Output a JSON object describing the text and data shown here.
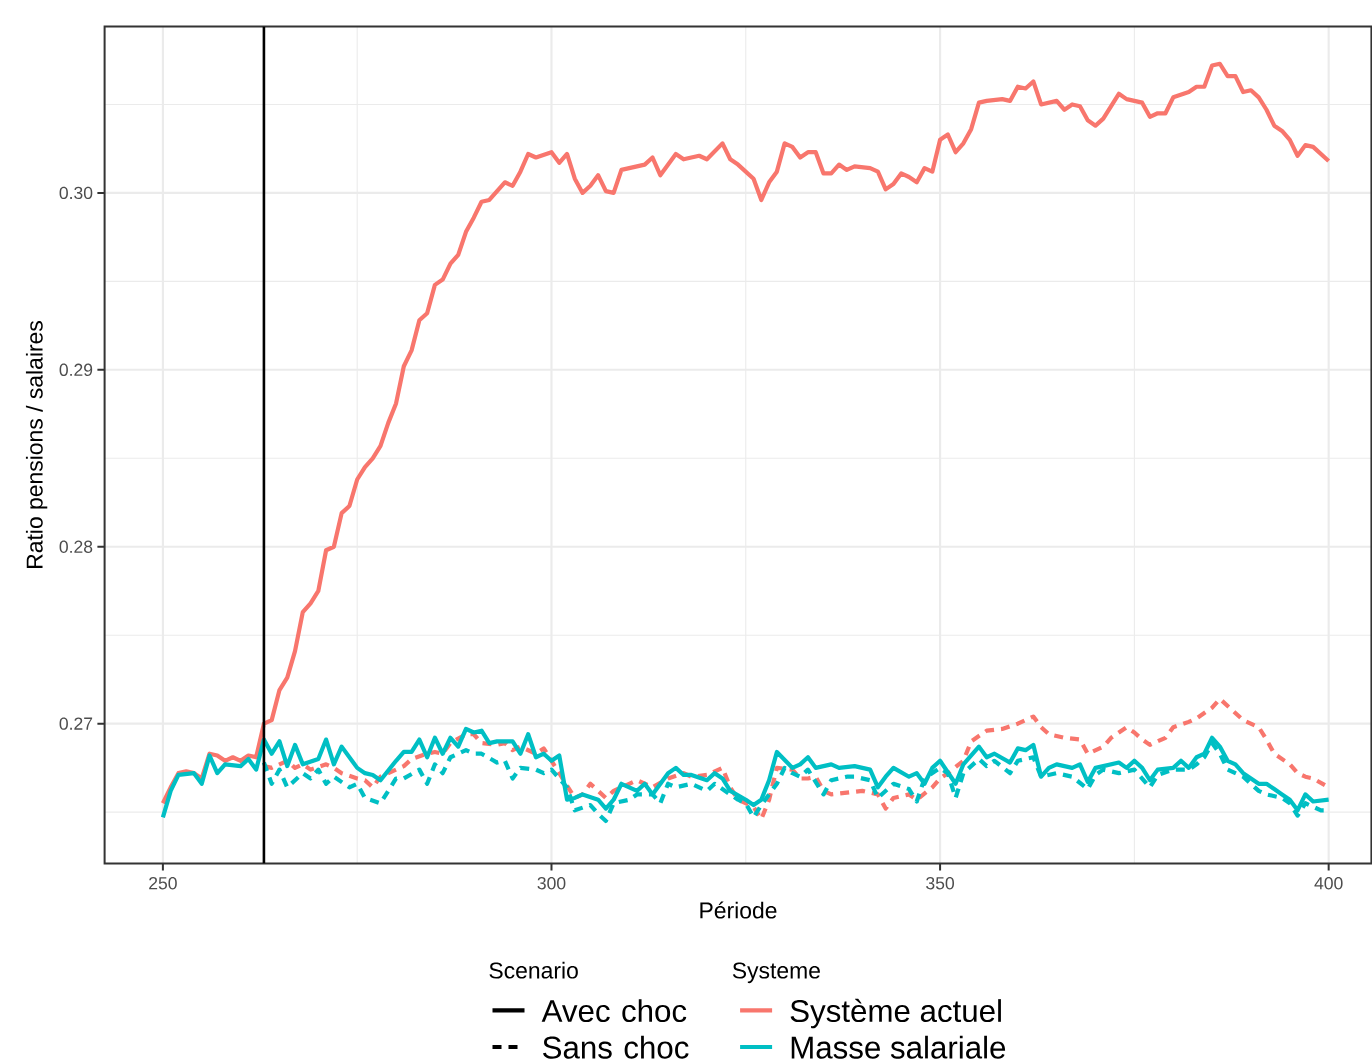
{
  "chart_data": {
    "type": "line",
    "xlabel": "Période",
    "ylabel": "Ratio pensions / salaires",
    "legend_title": [
      "Scenario",
      "Systeme"
    ],
    "xlim": [
      242.5,
      405.5
    ],
    "ylim": [
      0.2621,
      0.3094
    ],
    "xticks": [
      250,
      300,
      350,
      400
    ],
    "yticks": [
      0.27,
      0.28,
      0.29,
      {
        "value": 0.3,
        "label": "0.30"
      }
    ],
    "grid": true,
    "legend": "bottom",
    "ref_lines": [
      {
        "axis": "x",
        "value": 263,
        "color": "#000000"
      }
    ],
    "series": [
      {
        "name": "Système actuel",
        "color": "#f8766d",
        "line_style": "solid",
        "x": [
          250,
          251,
          252,
          253,
          254,
          255,
          256,
          257,
          258,
          259,
          260,
          261,
          262,
          263,
          264,
          265,
          266,
          267,
          268,
          269,
          270,
          271,
          272,
          273,
          274,
          275,
          276,
          277,
          278,
          279,
          280,
          281,
          282,
          283,
          284,
          285,
          286,
          287,
          288,
          289,
          290,
          291,
          292,
          293,
          294,
          295,
          296,
          297,
          298,
          300,
          301,
          302,
          303,
          304,
          305,
          306,
          307,
          308,
          309,
          311,
          312,
          313,
          314,
          316,
          317,
          319,
          320,
          322,
          323,
          324,
          326,
          327,
          328,
          329,
          330,
          331,
          332,
          333,
          334,
          335,
          336,
          337,
          338,
          339,
          341,
          342,
          343,
          344,
          345,
          346,
          347,
          348,
          349,
          350,
          351,
          352,
          353,
          354,
          355,
          356,
          358,
          359,
          360,
          361,
          362,
          363,
          365,
          366,
          367,
          368,
          369,
          370,
          371,
          373,
          374,
          376,
          377,
          378,
          379,
          380,
          382,
          383,
          384,
          385,
          386,
          387,
          388,
          389,
          390,
          391,
          392,
          393,
          394,
          395,
          396,
          397,
          398,
          400
        ],
        "values": [
          0.2655,
          0.2664,
          0.2672,
          0.2673,
          0.2672,
          0.2669,
          0.2683,
          0.2682,
          0.2679,
          0.2681,
          0.2679,
          0.2682,
          0.2681,
          0.27,
          0.2702,
          0.2719,
          0.2726,
          0.2741,
          0.2763,
          0.2768,
          0.2775,
          0.2798,
          0.28,
          0.2819,
          0.2823,
          0.2838,
          0.2845,
          0.285,
          0.2857,
          0.287,
          0.2881,
          0.2902,
          0.2911,
          0.2928,
          0.2932,
          0.2948,
          0.2951,
          0.296,
          0.2965,
          0.2978,
          0.2986,
          0.2995,
          0.2996,
          0.3001,
          0.3006,
          0.3004,
          0.3012,
          0.3022,
          0.302,
          0.3023,
          0.3017,
          0.3022,
          0.3008,
          0.3,
          0.3004,
          0.301,
          0.3001,
          0.3,
          0.3013,
          0.3015,
          0.3016,
          0.302,
          0.301,
          0.3022,
          0.3019,
          0.3021,
          0.3019,
          0.3028,
          0.3019,
          0.3016,
          0.3008,
          0.2996,
          0.3006,
          0.3012,
          0.3028,
          0.3026,
          0.302,
          0.3023,
          0.3023,
          0.3011,
          0.3011,
          0.3016,
          0.3013,
          0.3015,
          0.3014,
          0.3012,
          0.3002,
          0.3005,
          0.3011,
          0.3009,
          0.3006,
          0.3014,
          0.3012,
          0.303,
          0.3033,
          0.3023,
          0.3028,
          0.3036,
          0.3051,
          0.3052,
          0.3053,
          0.3052,
          0.306,
          0.3059,
          0.3063,
          0.305,
          0.3052,
          0.3047,
          0.305,
          0.3049,
          0.3041,
          0.3038,
          0.3042,
          0.3056,
          0.3053,
          0.3051,
          0.3043,
          0.3045,
          0.3045,
          0.3054,
          0.3057,
          0.306,
          0.306,
          0.3072,
          0.3073,
          0.3066,
          0.3066,
          0.3057,
          0.3058,
          0.3054,
          0.3047,
          0.3038,
          0.3035,
          0.303,
          0.3021,
          0.3027,
          0.3026,
          0.3018
        ]
      },
      {
        "color": "#f8766d",
        "line_style": "dashed",
        "x": [
          263,
          264,
          266,
          267,
          268,
          269,
          271,
          272,
          273,
          275,
          276,
          277,
          278,
          280,
          281,
          282,
          284,
          285,
          286,
          287,
          289,
          290,
          291,
          293,
          294,
          295,
          296,
          298,
          299,
          300,
          301,
          303,
          304,
          305,
          307,
          308,
          310,
          311,
          313,
          315,
          317,
          318,
          320,
          322,
          323,
          324,
          326,
          327,
          328,
          329,
          331,
          332,
          333,
          334,
          335,
          336,
          338,
          340,
          342,
          343,
          344,
          346,
          347,
          349,
          350,
          351,
          353,
          354,
          356,
          358,
          360,
          362,
          363,
          364,
          366,
          368,
          369,
          371,
          372,
          374,
          375,
          376,
          377,
          379,
          380,
          382,
          383,
          385,
          386,
          387,
          388,
          389,
          391,
          392,
          393,
          395,
          396,
          397,
          398,
          400
        ],
        "values": [
          0.2676,
          0.2675,
          0.2679,
          0.2675,
          0.2677,
          0.2674,
          0.2677,
          0.2675,
          0.2672,
          0.2669,
          0.2668,
          0.2664,
          0.267,
          0.2674,
          0.2676,
          0.268,
          0.2683,
          0.2684,
          0.2683,
          0.2689,
          0.2694,
          0.2694,
          0.2689,
          0.2688,
          0.2689,
          0.2685,
          0.2687,
          0.2683,
          0.2686,
          0.2679,
          0.2672,
          0.2658,
          0.266,
          0.2666,
          0.2658,
          0.2662,
          0.2666,
          0.2668,
          0.2664,
          0.2669,
          0.2672,
          0.267,
          0.2671,
          0.2675,
          0.2664,
          0.2657,
          0.2653,
          0.2646,
          0.2657,
          0.2675,
          0.2674,
          0.2669,
          0.2669,
          0.267,
          0.2662,
          0.266,
          0.2661,
          0.2662,
          0.266,
          0.2652,
          0.2658,
          0.266,
          0.2657,
          0.2664,
          0.2669,
          0.2672,
          0.2679,
          0.269,
          0.2696,
          0.2697,
          0.27,
          0.2704,
          0.2698,
          0.2694,
          0.2692,
          0.2691,
          0.2683,
          0.2687,
          0.2692,
          0.2698,
          0.2695,
          0.2691,
          0.2688,
          0.2692,
          0.2698,
          0.2701,
          0.2703,
          0.2709,
          0.2714,
          0.271,
          0.2706,
          0.2702,
          0.2698,
          0.2691,
          0.2683,
          0.2677,
          0.2672,
          0.267,
          0.2669,
          0.2664
        ]
      },
      {
        "name": "Masse salariale",
        "color": "#00bfc4",
        "line_style": "solid",
        "x": [
          250,
          251,
          252,
          254,
          255,
          256,
          257,
          258,
          260,
          261,
          262,
          263,
          264,
          265,
          266,
          267,
          268,
          270,
          271,
          272,
          273,
          275,
          276,
          277,
          278,
          280,
          281,
          282,
          283,
          284,
          285,
          286,
          287,
          288,
          289,
          290,
          291,
          292,
          293,
          295,
          296,
          297,
          298,
          299,
          300,
          301,
          302,
          303,
          304,
          306,
          307,
          308,
          309,
          310,
          311,
          312,
          313,
          315,
          316,
          317,
          318,
          320,
          321,
          322,
          323,
          325,
          326,
          327,
          328,
          329,
          331,
          332,
          333,
          334,
          336,
          337,
          339,
          340,
          341,
          342,
          343,
          344,
          346,
          347,
          348,
          349,
          350,
          352,
          353,
          355,
          356,
          357,
          359,
          360,
          361,
          362,
          363,
          364,
          365,
          367,
          368,
          369,
          370,
          371,
          373,
          374,
          375,
          376,
          377,
          378,
          380,
          381,
          382,
          383,
          384,
          385,
          386,
          387,
          388,
          389,
          390,
          391,
          392,
          393,
          394,
          395,
          396,
          397,
          398,
          400
        ],
        "values": [
          0.2647,
          0.2662,
          0.2671,
          0.2672,
          0.2666,
          0.2682,
          0.2672,
          0.2677,
          0.2676,
          0.268,
          0.2674,
          0.2691,
          0.2683,
          0.269,
          0.2676,
          0.2688,
          0.2677,
          0.268,
          0.2691,
          0.2677,
          0.2687,
          0.2675,
          0.2672,
          0.2671,
          0.2668,
          0.2679,
          0.2684,
          0.2684,
          0.2691,
          0.2681,
          0.2692,
          0.2683,
          0.2692,
          0.2687,
          0.2697,
          0.2695,
          0.2696,
          0.2689,
          0.269,
          0.269,
          0.2683,
          0.2694,
          0.2681,
          0.2683,
          0.2679,
          0.2682,
          0.2657,
          0.2658,
          0.266,
          0.2657,
          0.2652,
          0.2657,
          0.2666,
          0.2664,
          0.2662,
          0.2666,
          0.266,
          0.2672,
          0.2675,
          0.2671,
          0.2671,
          0.2668,
          0.2672,
          0.2669,
          0.2662,
          0.2657,
          0.2654,
          0.2657,
          0.2668,
          0.2684,
          0.2675,
          0.2677,
          0.2681,
          0.2675,
          0.2677,
          0.2675,
          0.2676,
          0.2675,
          0.2674,
          0.2664,
          0.267,
          0.2675,
          0.267,
          0.2672,
          0.2666,
          0.2675,
          0.2679,
          0.2666,
          0.2677,
          0.2687,
          0.2681,
          0.2683,
          0.2678,
          0.2686,
          0.2685,
          0.2688,
          0.267,
          0.2675,
          0.2677,
          0.2675,
          0.2677,
          0.2667,
          0.2675,
          0.2676,
          0.2678,
          0.2675,
          0.2679,
          0.2675,
          0.2668,
          0.2674,
          0.2675,
          0.2679,
          0.2675,
          0.2681,
          0.2683,
          0.2692,
          0.2687,
          0.2679,
          0.2677,
          0.2672,
          0.2669,
          0.2666,
          0.2666,
          0.2663,
          0.266,
          0.2657,
          0.2651,
          0.266,
          0.2656,
          0.2657
        ]
      },
      {
        "color": "#00bfc4",
        "line_style": "dashed",
        "x": [
          263,
          264,
          265,
          266,
          268,
          269,
          270,
          271,
          272,
          274,
          275,
          276,
          278,
          279,
          280,
          281,
          283,
          284,
          285,
          286,
          287,
          289,
          290,
          291,
          293,
          294,
          295,
          296,
          298,
          299,
          300,
          302,
          303,
          305,
          306,
          307,
          308,
          310,
          311,
          313,
          314,
          315,
          316,
          318,
          320,
          321,
          323,
          324,
          325,
          326,
          327,
          329,
          330,
          331,
          332,
          333,
          335,
          336,
          338,
          339,
          341,
          342,
          343,
          344,
          346,
          347,
          348,
          350,
          351,
          352,
          353,
          355,
          356,
          357,
          359,
          360,
          362,
          363,
          365,
          367,
          369,
          370,
          371,
          373,
          375,
          377,
          378,
          380,
          382,
          383,
          384,
          385,
          386,
          387,
          389,
          390,
          391,
          392,
          394,
          395,
          396,
          397,
          399,
          400
        ],
        "values": [
          0.2678,
          0.2666,
          0.2674,
          0.2664,
          0.2672,
          0.2669,
          0.2674,
          0.2666,
          0.267,
          0.2664,
          0.2666,
          0.2658,
          0.2655,
          0.2662,
          0.2669,
          0.2669,
          0.2674,
          0.2666,
          0.2677,
          0.2672,
          0.2681,
          0.2685,
          0.2683,
          0.2683,
          0.2678,
          0.2679,
          0.2669,
          0.2675,
          0.2674,
          0.2672,
          0.2674,
          0.2664,
          0.2651,
          0.2654,
          0.2649,
          0.2645,
          0.2655,
          0.2657,
          0.266,
          0.266,
          0.2655,
          0.2666,
          0.2664,
          0.2666,
          0.2662,
          0.2666,
          0.266,
          0.2657,
          0.2655,
          0.2647,
          0.2654,
          0.2666,
          0.2675,
          0.2672,
          0.267,
          0.2674,
          0.266,
          0.2668,
          0.267,
          0.267,
          0.2668,
          0.2658,
          0.2662,
          0.2666,
          0.2663,
          0.2656,
          0.2669,
          0.2675,
          0.2672,
          0.2658,
          0.2672,
          0.268,
          0.2676,
          0.2679,
          0.2672,
          0.2679,
          0.2681,
          0.267,
          0.2672,
          0.267,
          0.2663,
          0.2671,
          0.2674,
          0.2672,
          0.2674,
          0.2664,
          0.2671,
          0.2674,
          0.2674,
          0.2677,
          0.2681,
          0.2689,
          0.2683,
          0.2674,
          0.267,
          0.2666,
          0.2662,
          0.266,
          0.2658,
          0.2655,
          0.2648,
          0.2655,
          0.2651,
          0.2651
        ]
      },
      {
        "name": "Avec choc",
        "color": "#000000",
        "line_style": "solid"
      },
      {
        "name": "Sans choc",
        "color": "#000000",
        "line_style": "dashed"
      }
    ]
  }
}
